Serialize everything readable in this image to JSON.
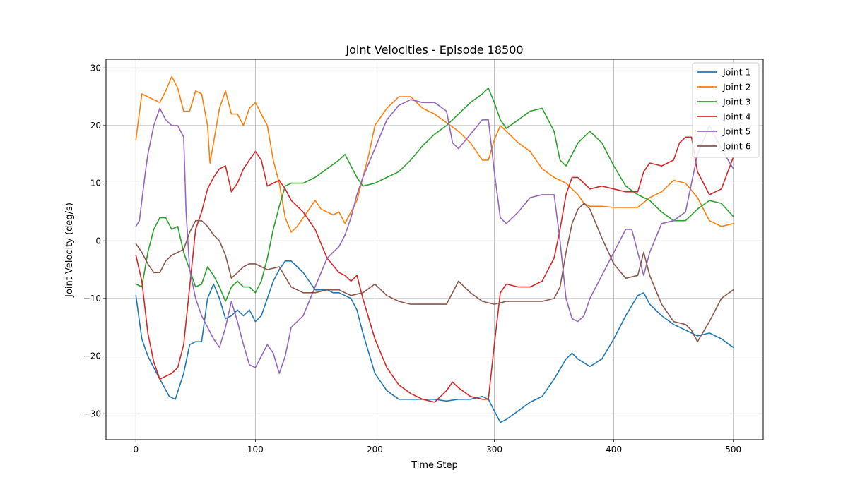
{
  "chart_data": {
    "type": "line",
    "title": "Joint Velocities - Episode 18500",
    "xlabel": "Time Step",
    "ylabel": "Joint Velocity (deg/s)",
    "xlim": [
      -25,
      525
    ],
    "ylim": [
      -34.5,
      31.5
    ],
    "xticks": [
      0,
      100,
      200,
      300,
      400,
      500
    ],
    "yticks": [
      -30,
      -20,
      -10,
      0,
      10,
      20,
      30
    ],
    "grid": true,
    "legend_position": "top-right",
    "series": [
      {
        "name": "Joint 1",
        "color": "#1f77b4",
        "x": [
          0,
          5,
          10,
          20,
          28,
          33,
          40,
          45,
          50,
          55,
          60,
          65,
          70,
          75,
          80,
          85,
          90,
          95,
          100,
          105,
          110,
          115,
          120,
          125,
          130,
          135,
          140,
          145,
          150,
          155,
          160,
          165,
          170,
          175,
          180,
          185,
          190,
          200,
          210,
          220,
          230,
          240,
          250,
          260,
          270,
          280,
          290,
          295,
          300,
          305,
          310,
          320,
          330,
          340,
          350,
          360,
          365,
          370,
          380,
          390,
          400,
          410,
          420,
          425,
          430,
          440,
          450,
          460,
          470,
          480,
          490,
          500
        ],
        "y": [
          -9.5,
          -17,
          -20,
          -24,
          -27,
          -27.5,
          -23,
          -18,
          -17.5,
          -17.5,
          -10,
          -7.5,
          -10,
          -13.5,
          -13,
          -12,
          -13,
          -12,
          -14,
          -13,
          -10,
          -7,
          -5,
          -3.5,
          -3.5,
          -4.5,
          -5.5,
          -7,
          -8.5,
          -8.5,
          -8.5,
          -9,
          -9,
          -9.5,
          -10,
          -12,
          -16,
          -23,
          -26,
          -27.5,
          -27.5,
          -27.5,
          -27.5,
          -27.8,
          -27.5,
          -27.5,
          -27,
          -27.5,
          -29.5,
          -31.5,
          -31,
          -29.5,
          -28,
          -27,
          -24,
          -20.5,
          -19.5,
          -20.5,
          -21.8,
          -20.5,
          -17,
          -13,
          -9.5,
          -9,
          -11,
          -13,
          -14.5,
          -15.5,
          -16.5,
          -16,
          -17,
          -18.5
        ]
      },
      {
        "name": "Joint 2",
        "color": "#ff7f0e",
        "x": [
          0,
          5,
          10,
          15,
          20,
          25,
          30,
          35,
          40,
          45,
          50,
          55,
          60,
          62,
          65,
          70,
          75,
          80,
          85,
          90,
          95,
          100,
          105,
          110,
          115,
          120,
          125,
          130,
          135,
          140,
          145,
          150,
          155,
          160,
          165,
          170,
          175,
          180,
          185,
          190,
          195,
          200,
          210,
          220,
          230,
          240,
          250,
          260,
          270,
          280,
          290,
          295,
          300,
          305,
          310,
          320,
          330,
          340,
          350,
          360,
          370,
          375,
          380,
          390,
          400,
          410,
          420,
          430,
          440,
          450,
          460,
          470,
          480,
          490,
          500
        ],
        "y": [
          17.5,
          25.5,
          25,
          24.5,
          24,
          26,
          28.5,
          26.5,
          22.5,
          22.5,
          26,
          25.5,
          20,
          13.5,
          17,
          23,
          26,
          22,
          22,
          20,
          23,
          24,
          22,
          20,
          14,
          10,
          4,
          1.5,
          2.5,
          4,
          5.5,
          7,
          5.5,
          5,
          4.5,
          5,
          3,
          5,
          7,
          11,
          15,
          20,
          23,
          25,
          25,
          23,
          22,
          20.5,
          19,
          17,
          14,
          14,
          17.5,
          20,
          19,
          17,
          15.5,
          12.5,
          11,
          10,
          8,
          6.5,
          6,
          6,
          5.8,
          5.8,
          5.8,
          7.5,
          8.5,
          10.5,
          10,
          7.5,
          3.5,
          2.5,
          3
        ]
      },
      {
        "name": "Joint 3",
        "color": "#2ca02c",
        "x": [
          0,
          5,
          10,
          15,
          20,
          25,
          30,
          35,
          40,
          45,
          50,
          55,
          60,
          65,
          70,
          75,
          80,
          85,
          90,
          95,
          100,
          105,
          110,
          115,
          120,
          125,
          130,
          140,
          150,
          160,
          170,
          175,
          180,
          185,
          190,
          200,
          210,
          220,
          230,
          240,
          250,
          260,
          270,
          280,
          290,
          295,
          300,
          305,
          310,
          320,
          330,
          340,
          350,
          355,
          360,
          365,
          370,
          380,
          390,
          400,
          410,
          420,
          430,
          440,
          450,
          460,
          470,
          480,
          490,
          500
        ],
        "y": [
          -7.5,
          -8,
          -2,
          2,
          4,
          4,
          2,
          2.5,
          -2,
          -5,
          -8,
          -7.5,
          -4.5,
          -6,
          -8,
          -10.5,
          -8,
          -7,
          -8,
          -8,
          -9,
          -7,
          -3,
          2,
          6,
          9.5,
          10,
          10,
          11,
          12.5,
          14,
          15,
          13,
          11,
          9.5,
          10,
          11,
          12,
          14,
          16.5,
          18.5,
          20,
          22,
          24,
          25.5,
          26.5,
          24,
          21,
          19.5,
          21,
          22.5,
          23,
          19,
          14,
          13,
          15,
          17,
          19,
          17,
          13,
          9.5,
          8,
          7,
          5,
          3.5,
          3.5,
          5.5,
          7,
          6.5,
          4.2
        ]
      },
      {
        "name": "Joint 4",
        "color": "#d62728",
        "x": [
          0,
          5,
          10,
          15,
          20,
          25,
          30,
          35,
          40,
          45,
          50,
          55,
          60,
          65,
          70,
          75,
          80,
          85,
          90,
          95,
          100,
          105,
          110,
          115,
          120,
          125,
          130,
          140,
          150,
          160,
          170,
          175,
          180,
          185,
          190,
          200,
          210,
          220,
          230,
          240,
          250,
          260,
          265,
          270,
          280,
          290,
          295,
          300,
          305,
          310,
          320,
          330,
          340,
          345,
          350,
          355,
          360,
          365,
          370,
          375,
          380,
          390,
          400,
          410,
          420,
          425,
          430,
          440,
          450,
          455,
          460,
          465,
          470,
          475,
          480,
          490,
          500
        ],
        "y": [
          -2.5,
          -7,
          -16,
          -21,
          -24,
          -23.5,
          -23,
          -22,
          -18,
          -8,
          2,
          5,
          9,
          11,
          12.5,
          13,
          8.5,
          10,
          12.5,
          14,
          15.5,
          14,
          9.5,
          10,
          10.5,
          9,
          7,
          5,
          2,
          -3,
          -5.5,
          -6,
          -7,
          -6,
          -10,
          -17,
          -22,
          -25,
          -26.5,
          -27.5,
          -28,
          -26,
          -24.5,
          -25.5,
          -27,
          -27.5,
          -27.5,
          -18,
          -9,
          -7.5,
          -8,
          -8,
          -7,
          -5,
          -3,
          2,
          8,
          11,
          11,
          10,
          9,
          9.5,
          9,
          8.5,
          8.5,
          12,
          13.5,
          13,
          14,
          17,
          18,
          18,
          12,
          10,
          8,
          9,
          14.5
        ]
      },
      {
        "name": "Joint 5",
        "color": "#9467bd",
        "x": [
          0,
          3,
          5,
          8,
          10,
          15,
          20,
          25,
          30,
          35,
          40,
          42,
          45,
          50,
          55,
          60,
          65,
          70,
          75,
          80,
          85,
          90,
          95,
          100,
          105,
          110,
          115,
          120,
          125,
          130,
          140,
          150,
          160,
          170,
          175,
          180,
          185,
          190,
          200,
          210,
          220,
          230,
          240,
          250,
          260,
          265,
          270,
          280,
          290,
          295,
          300,
          305,
          310,
          320,
          330,
          340,
          350,
          355,
          360,
          365,
          370,
          375,
          380,
          390,
          400,
          410,
          415,
          420,
          425,
          430,
          440,
          450,
          460,
          470,
          480,
          490,
          500
        ],
        "y": [
          2.5,
          3.5,
          7,
          12,
          15,
          20,
          23,
          21,
          20,
          20,
          18,
          5,
          -5,
          -10,
          -13,
          -15,
          -17,
          -18.5,
          -15,
          -10.5,
          -14,
          -18,
          -21.5,
          -22,
          -20,
          -18,
          -19.5,
          -23,
          -20,
          -15,
          -13,
          -8,
          -3,
          -1,
          1,
          4,
          8,
          11,
          16,
          21,
          23.5,
          24.5,
          24,
          24,
          22.5,
          17,
          16,
          18.5,
          21,
          21,
          12,
          4,
          3,
          5,
          7.5,
          8,
          8,
          0,
          -10,
          -13.5,
          -14,
          -13,
          -10,
          -6,
          -2,
          2,
          2,
          -2,
          -6,
          -2,
          3,
          3.5,
          5,
          15,
          20,
          16,
          12.5
        ]
      },
      {
        "name": "Joint 6",
        "color": "#8c564b",
        "x": [
          0,
          5,
          10,
          15,
          20,
          25,
          30,
          35,
          40,
          45,
          50,
          55,
          60,
          65,
          70,
          75,
          80,
          85,
          90,
          95,
          100,
          105,
          110,
          120,
          130,
          140,
          150,
          160,
          170,
          180,
          190,
          200,
          210,
          220,
          230,
          240,
          250,
          260,
          265,
          270,
          280,
          290,
          300,
          310,
          320,
          330,
          340,
          350,
          355,
          360,
          365,
          370,
          375,
          380,
          390,
          400,
          410,
          420,
          425,
          430,
          440,
          450,
          460,
          465,
          470,
          480,
          490,
          500
        ],
        "y": [
          -0.5,
          -2,
          -4,
          -5.5,
          -5.5,
          -3.5,
          -2.5,
          -2,
          -1.5,
          1.5,
          3.5,
          3.5,
          2.5,
          1,
          0,
          -2.5,
          -6.5,
          -5.5,
          -4.5,
          -4,
          -4,
          -4.5,
          -5,
          -4.5,
          -8,
          -9,
          -9,
          -8.5,
          -8.5,
          -9.5,
          -9,
          -7.5,
          -9.5,
          -10.5,
          -11,
          -11,
          -11,
          -11,
          -9,
          -7,
          -9,
          -10.5,
          -11,
          -10.5,
          -10.5,
          -10.5,
          -10.5,
          -10,
          -8,
          -2,
          3,
          5.5,
          6.5,
          5.5,
          0.5,
          -4,
          -6.5,
          -6,
          -2,
          -6,
          -11,
          -14,
          -14.5,
          -15.5,
          -17.5,
          -14,
          -10,
          -8.5
        ]
      }
    ]
  }
}
